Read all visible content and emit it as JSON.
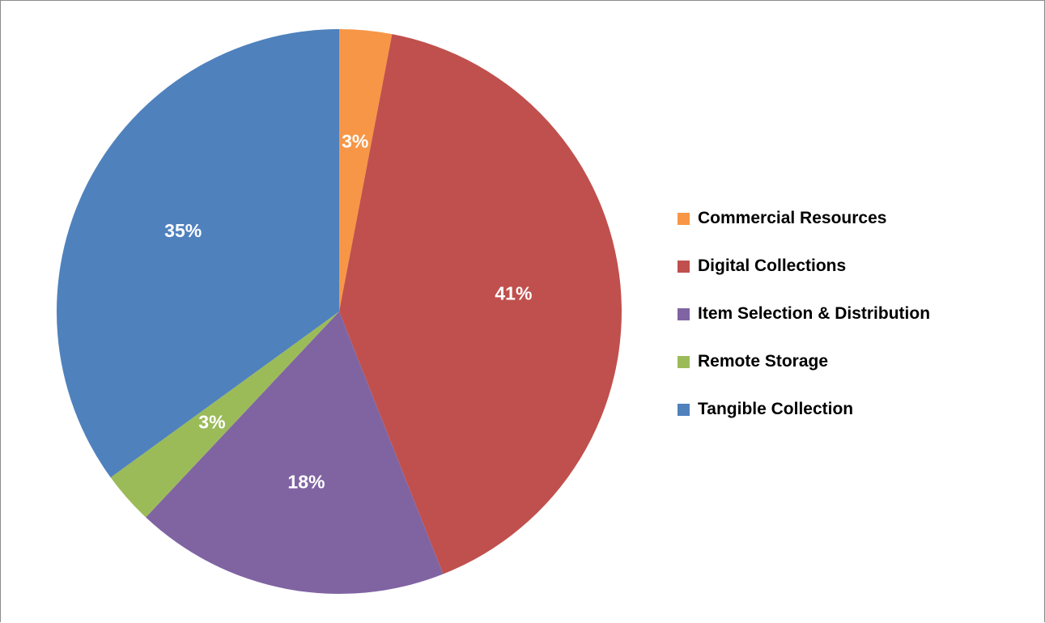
{
  "chart_data": {
    "type": "pie",
    "title": "",
    "slices": [
      {
        "name": "Commercial Resources",
        "value": 3,
        "label": "3%",
        "color": "#F79646"
      },
      {
        "name": "Digital Collections",
        "value": 41,
        "label": "41%",
        "color": "#C0504D"
      },
      {
        "name": "Item Selection & Distribution",
        "value": 18,
        "label": "18%",
        "color": "#8064A2"
      },
      {
        "name": "Remote Storage",
        "value": 3,
        "label": "3%",
        "color": "#9BBB59"
      },
      {
        "name": "Tangible Collection",
        "value": 35,
        "label": "35%",
        "color": "#4F81BD"
      }
    ],
    "legend_position": "right",
    "start_angle": "top",
    "direction": "clockwise"
  },
  "legend": {
    "items": [
      {
        "label": "Commercial Resources",
        "color": "#F79646"
      },
      {
        "label": "Digital Collections",
        "color": "#C0504D"
      },
      {
        "label": "Item Selection & Distribution",
        "color": "#8064A2"
      },
      {
        "label": "Remote Storage",
        "color": "#9BBB59"
      },
      {
        "label": "Tangible Collection",
        "color": "#4F81BD"
      }
    ]
  }
}
